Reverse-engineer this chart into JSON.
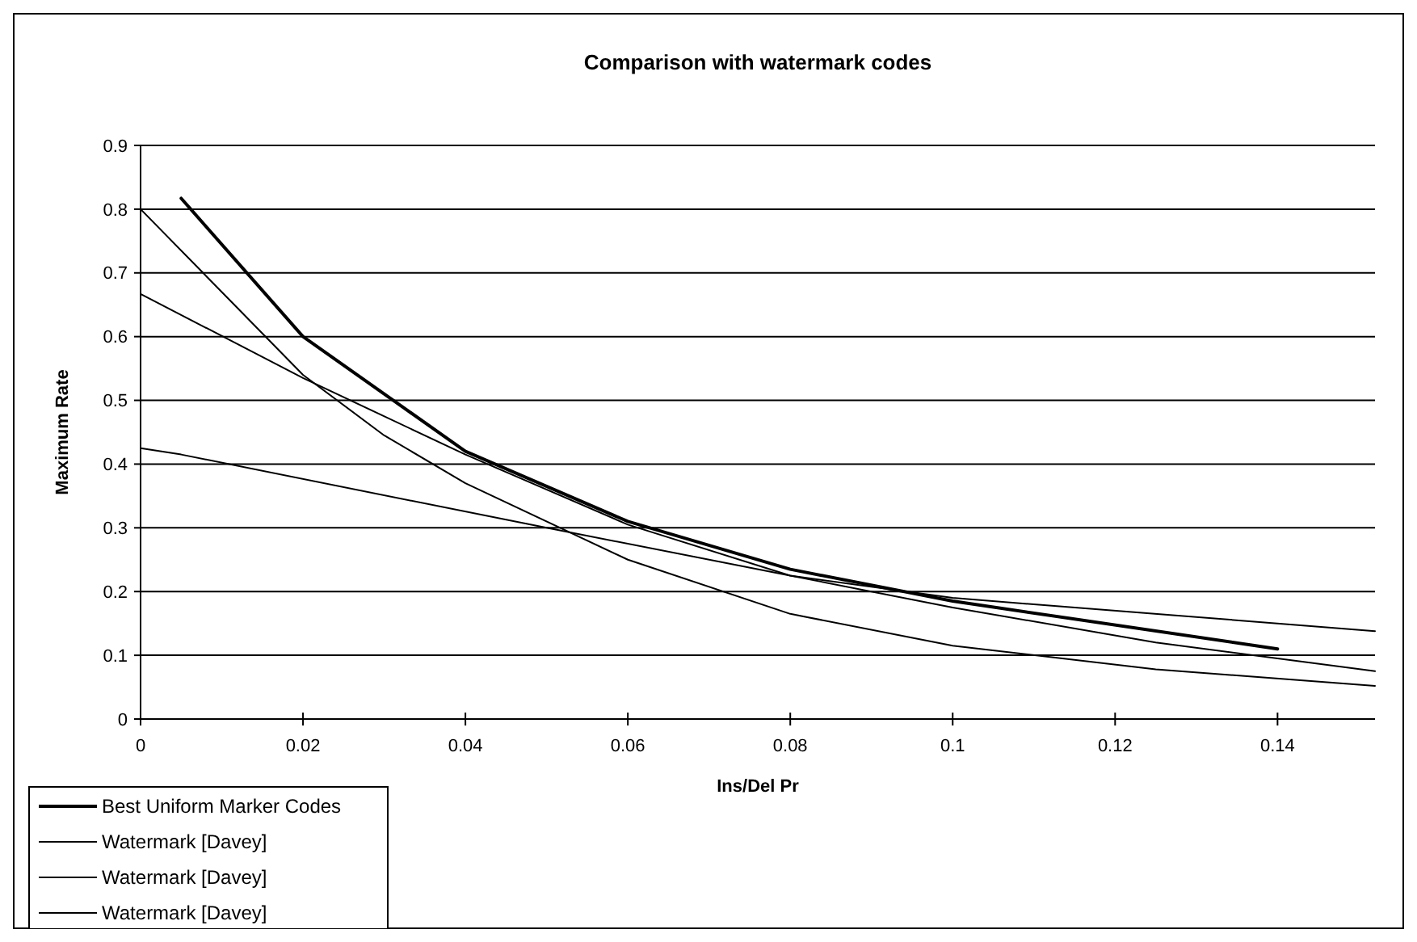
{
  "chart_data": {
    "type": "line",
    "title": "Comparison with watermark codes",
    "xlabel": "Ins/Del Pr",
    "ylabel": "Maximum Rate",
    "xlim": [
      0,
      0.152
    ],
    "xticks": [
      0,
      0.02,
      0.04,
      0.06,
      0.08,
      0.1,
      0.12,
      0.14
    ],
    "ylim": [
      0,
      0.9
    ],
    "yticks": [
      0,
      0.1,
      0.2,
      0.3,
      0.4,
      0.5,
      0.6,
      0.7,
      0.8,
      0.9
    ],
    "grid": "y",
    "legend": "bottom left",
    "marker": "none",
    "line_style": "solid",
    "series": [
      {
        "name": "Best Uniform Marker Codes",
        "color": "#000000",
        "x": [
          0.005,
          0.02,
          0.04,
          0.06,
          0.08,
          0.1,
          0.14
        ],
        "values": [
          0.817,
          0.6,
          0.42,
          0.31,
          0.235,
          0.185,
          0.11
        ]
      },
      {
        "name": "Watermark [Davey]",
        "color": "#000000",
        "x": [
          0,
          0.02,
          0.03,
          0.04,
          0.06,
          0.08,
          0.1,
          0.125,
          0.152
        ],
        "values": [
          0.8,
          0.54,
          0.445,
          0.37,
          0.25,
          0.165,
          0.115,
          0.078,
          0.052
        ]
      },
      {
        "name": "Watermark [Davey]",
        "color": "#000000",
        "x": [
          0,
          0.02,
          0.04,
          0.06,
          0.08,
          0.1,
          0.125,
          0.152
        ],
        "values": [
          0.667,
          0.535,
          0.415,
          0.305,
          0.225,
          0.175,
          0.12,
          0.075
        ]
      },
      {
        "name": "Watermark [Davey]",
        "color": "#000000",
        "x": [
          0,
          0.005,
          0.05,
          0.08,
          0.1,
          0.152
        ],
        "values": [
          0.425,
          0.415,
          0.3,
          0.225,
          0.19,
          0.138
        ]
      }
    ]
  }
}
